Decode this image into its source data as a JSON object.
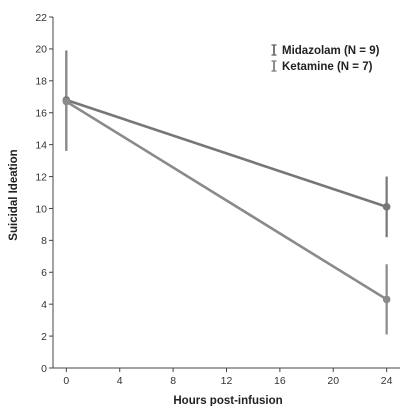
{
  "chart_data": {
    "type": "line",
    "title": "",
    "xlabel": "Hours post-infusion",
    "ylabel": "Suicidal Ideation",
    "xlim": [
      -1,
      25
    ],
    "ylim": [
      0,
      22
    ],
    "x_ticks": [
      0,
      4,
      8,
      12,
      16,
      20,
      24
    ],
    "y_ticks": [
      0,
      2,
      4,
      6,
      8,
      10,
      12,
      14,
      16,
      18,
      20,
      22
    ],
    "grid": false,
    "legend_position": "top-right",
    "series": [
      {
        "name": "Midazolam (N = 9)",
        "color": "#777777",
        "x": [
          0,
          24
        ],
        "y": [
          16.8,
          10.1
        ],
        "error": [
          3.1,
          1.9
        ]
      },
      {
        "name": "Ketamine (N = 7)",
        "color": "#8a8a8a",
        "x": [
          0,
          24
        ],
        "y": [
          16.7,
          4.3
        ],
        "error": [
          3.1,
          2.2
        ]
      }
    ]
  }
}
